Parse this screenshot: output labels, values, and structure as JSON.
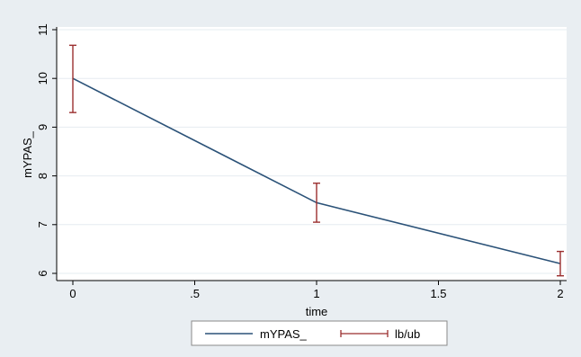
{
  "chart_data": {
    "type": "line",
    "title": "",
    "xlabel": "time",
    "ylabel": "mYPAS_",
    "xlim": [
      0,
      2
    ],
    "ylim": [
      6,
      11
    ],
    "x_ticks": [
      0,
      0.5,
      1,
      1.5,
      2
    ],
    "x_tick_labels": [
      "0",
      ".5",
      "1",
      "1.5",
      "2"
    ],
    "y_ticks": [
      6,
      7,
      8,
      9,
      10,
      11
    ],
    "y_tick_labels": [
      "6",
      "7",
      "8",
      "9",
      "10",
      "11"
    ],
    "grid": true,
    "legend_position": "bottom",
    "series": [
      {
        "name": "mYPAS_",
        "kind": "line",
        "color": "#2b5278",
        "x": [
          0,
          1,
          2
        ],
        "y": [
          10.0,
          7.45,
          6.2
        ]
      },
      {
        "name": "lb/ub",
        "kind": "errorbar",
        "color": "#9b2f2f",
        "x": [
          0,
          1,
          2
        ],
        "lower": [
          9.3,
          7.05,
          5.95
        ],
        "upper": [
          10.68,
          7.85,
          6.45
        ]
      }
    ]
  },
  "colors": {
    "outer_background": "#e9eef2",
    "plot_background": "#ffffff",
    "gridline": "#e6ecf0"
  }
}
